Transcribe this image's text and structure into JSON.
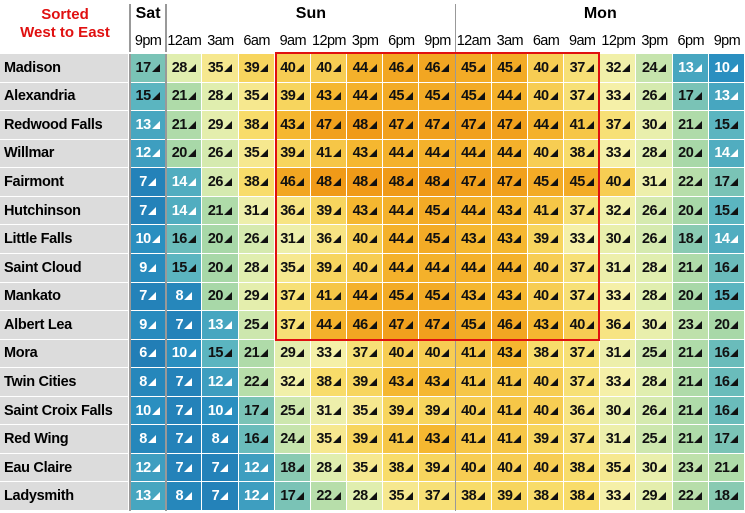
{
  "header": {
    "title": [
      "Sorted",
      "West to East"
    ],
    "days": [
      {
        "label": "Sat",
        "times": [
          "9pm"
        ]
      },
      {
        "label": "Sun",
        "times": [
          "12am",
          "3am",
          "6am",
          "9am",
          "12pm",
          "3pm",
          "6pm",
          "9pm"
        ]
      },
      {
        "label": "Mon",
        "times": [
          "12am",
          "3am",
          "6am",
          "9am",
          "12pm",
          "3pm",
          "6pm",
          "9pm"
        ]
      }
    ]
  },
  "table": {
    "rows": [
      {
        "city": "Madison",
        "values": [
          17,
          28,
          35,
          39,
          40,
          40,
          44,
          46,
          46,
          45,
          45,
          40,
          37,
          32,
          24,
          13,
          10
        ]
      },
      {
        "city": "Alexandria",
        "values": [
          15,
          21,
          28,
          35,
          39,
          43,
          44,
          45,
          45,
          45,
          44,
          40,
          37,
          33,
          26,
          17,
          13
        ]
      },
      {
        "city": "Redwood Falls",
        "values": [
          13,
          21,
          29,
          38,
          43,
          47,
          48,
          47,
          47,
          47,
          47,
          44,
          41,
          37,
          30,
          21,
          15
        ]
      },
      {
        "city": "Willmar",
        "values": [
          12,
          20,
          26,
          35,
          39,
          41,
          43,
          44,
          44,
          44,
          44,
          40,
          38,
          33,
          28,
          20,
          14
        ]
      },
      {
        "city": "Fairmont",
        "values": [
          7,
          14,
          26,
          38,
          46,
          48,
          48,
          48,
          48,
          47,
          47,
          45,
          45,
          40,
          31,
          22,
          17
        ]
      },
      {
        "city": "Hutchinson",
        "values": [
          7,
          14,
          21,
          31,
          36,
          39,
          43,
          44,
          45,
          44,
          43,
          41,
          37,
          32,
          26,
          20,
          15
        ]
      },
      {
        "city": "Little Falls",
        "values": [
          10,
          16,
          20,
          26,
          31,
          36,
          40,
          44,
          45,
          43,
          43,
          39,
          33,
          30,
          26,
          18,
          14
        ]
      },
      {
        "city": "Saint Cloud",
        "values": [
          9,
          15,
          20,
          28,
          35,
          39,
          40,
          44,
          44,
          44,
          44,
          40,
          37,
          31,
          28,
          21,
          16
        ]
      },
      {
        "city": "Mankato",
        "values": [
          7,
          8,
          20,
          29,
          37,
          41,
          44,
          45,
          45,
          43,
          43,
          40,
          37,
          33,
          28,
          20,
          15
        ]
      },
      {
        "city": "Albert Lea",
        "values": [
          9,
          7,
          13,
          25,
          37,
          44,
          46,
          47,
          47,
          45,
          46,
          43,
          40,
          36,
          30,
          23,
          20
        ]
      },
      {
        "city": "Mora",
        "values": [
          6,
          10,
          15,
          21,
          29,
          33,
          37,
          40,
          40,
          41,
          43,
          38,
          37,
          31,
          25,
          21,
          16
        ]
      },
      {
        "city": "Twin Cities",
        "values": [
          8,
          7,
          12,
          22,
          32,
          38,
          39,
          43,
          43,
          41,
          41,
          40,
          37,
          33,
          28,
          21,
          16
        ]
      },
      {
        "city": "Saint Croix Falls",
        "values": [
          10,
          7,
          10,
          17,
          25,
          31,
          35,
          39,
          39,
          40,
          41,
          40,
          36,
          30,
          26,
          21,
          16
        ]
      },
      {
        "city": "Red Wing",
        "values": [
          8,
          7,
          8,
          16,
          24,
          35,
          39,
          41,
          43,
          41,
          41,
          39,
          37,
          31,
          25,
          21,
          17
        ]
      },
      {
        "city": "Eau Claire",
        "values": [
          12,
          7,
          7,
          12,
          18,
          28,
          35,
          38,
          39,
          40,
          40,
          40,
          38,
          35,
          30,
          23,
          21
        ]
      },
      {
        "city": "Ladysmith",
        "values": [
          13,
          8,
          7,
          12,
          17,
          22,
          28,
          35,
          37,
          38,
          39,
          38,
          38,
          33,
          29,
          22,
          18
        ]
      }
    ]
  }
}
